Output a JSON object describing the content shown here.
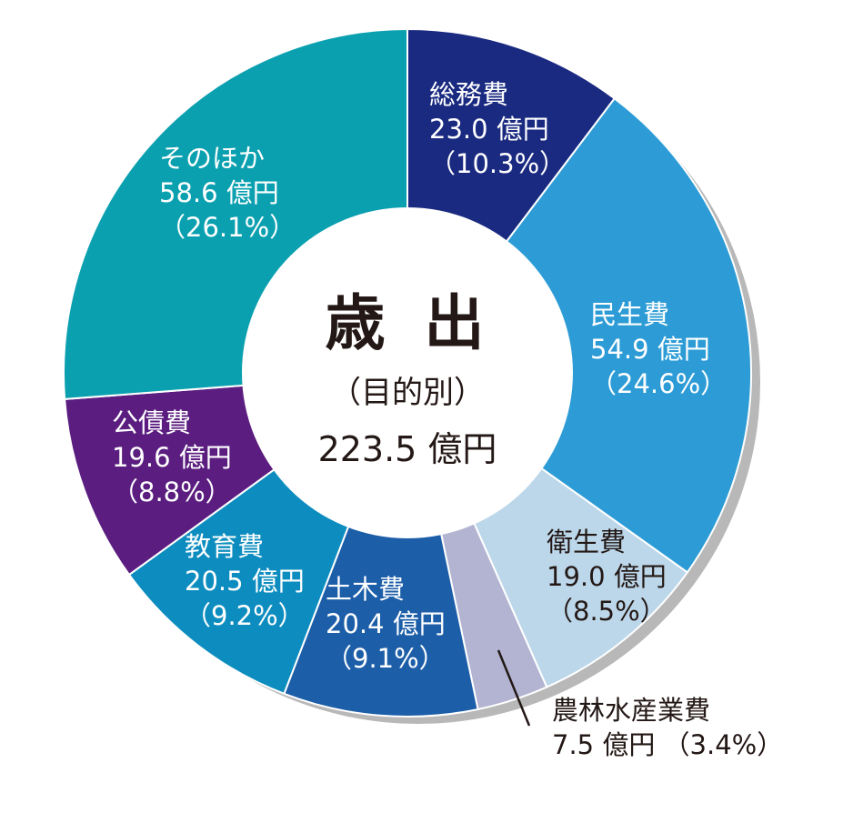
{
  "chart_data": {
    "type": "pie",
    "title": "歳 出",
    "subtitle": "（目的別）",
    "total": "223.5 億円",
    "unit": "億円",
    "slices": [
      {
        "name": "総務費",
        "value": 23.0,
        "value_text": "23.0 億円",
        "percent_text": "（10.3%）",
        "percent": 10.3,
        "color": "#1a2a80",
        "text_color": "#ffffff"
      },
      {
        "name": "民生費",
        "value": 54.9,
        "value_text": "54.9 億円",
        "percent_text": "（24.6%）",
        "percent": 24.6,
        "color": "#2d9cd6",
        "text_color": "#ffffff"
      },
      {
        "name": "衛生費",
        "value": 19.0,
        "value_text": "19.0 億円",
        "percent_text": "（8.5%）",
        "percent": 8.5,
        "color": "#bcd7ea",
        "text_color": "#231815"
      },
      {
        "name": "農林水産業費",
        "value": 7.5,
        "value_text": "7.5 億円",
        "percent_text": "（3.4%）",
        "percent": 3.4,
        "color": "#b2b4d2",
        "text_color": "#231815"
      },
      {
        "name": "土木費",
        "value": 20.4,
        "value_text": "20.4 億円",
        "percent_text": "（9.1%）",
        "percent": 9.1,
        "color": "#1c5ea8",
        "text_color": "#ffffff"
      },
      {
        "name": "教育費",
        "value": 20.5,
        "value_text": "20.5 億円",
        "percent_text": "（9.2%）",
        "percent": 9.2,
        "color": "#0d8dbf",
        "text_color": "#ffffff"
      },
      {
        "name": "公債費",
        "value": 19.6,
        "value_text": "19.6 億円",
        "percent_text": "（8.8%）",
        "percent": 8.8,
        "color": "#5b1e80",
        "text_color": "#ffffff"
      },
      {
        "name": "そのほか",
        "value": 58.6,
        "value_text": "58.6 億円",
        "percent_text": "（26.1%）",
        "percent": 26.1,
        "color": "#0ba0b0",
        "text_color": "#ffffff"
      }
    ]
  }
}
